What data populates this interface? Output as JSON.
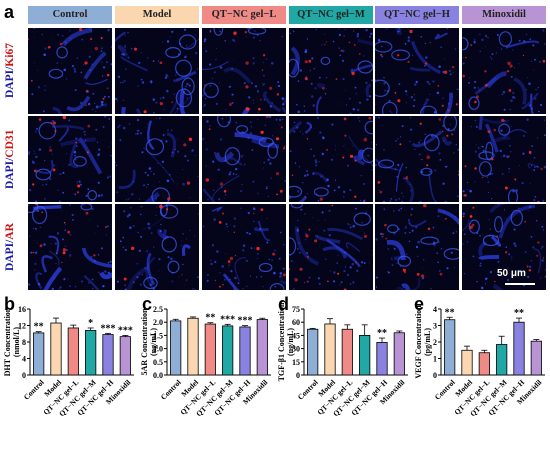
{
  "panel_letters": {
    "a": "a",
    "b": "b",
    "c": "c",
    "d": "d",
    "e": "e"
  },
  "groups": [
    "Control",
    "Model",
    "QT−NC gel−L",
    "QT−NC gel−M",
    "QT−NC gel−H",
    "Minoxidil"
  ],
  "group_colors": [
    "#8faed6",
    "#fbd7b1",
    "#f08a86",
    "#22a8a4",
    "#8a82e0",
    "#b994d4"
  ],
  "rows": [
    {
      "dapi": "DAPI/",
      "marker": "Ki67"
    },
    {
      "dapi": "DAPI/",
      "marker": "CD31"
    },
    {
      "dapi": "DAPI/",
      "marker": "AR"
    }
  ],
  "scale_bar": "50 μm",
  "chart_data": [
    {
      "type": "bar",
      "ylabel_line1": "DHT Concentration",
      "ylabel_line2": "(nmol/L)",
      "ylim": [
        0,
        16
      ],
      "yticks": [
        0,
        4,
        8,
        12,
        16
      ],
      "categories": [
        "Control",
        "Model",
        "QT−NC gel−L",
        "QT−NC gel−M",
        "QT−NC gel−H",
        "Minoxidil"
      ],
      "values": [
        10.2,
        12.6,
        11.4,
        10.8,
        9.8,
        9.3
      ],
      "errors": [
        0.3,
        1.2,
        0.7,
        0.6,
        0.3,
        0.3
      ],
      "significance": [
        "**",
        "",
        "",
        "*",
        "***",
        "***"
      ]
    },
    {
      "type": "bar",
      "ylabel_line1": "5AR Concentration",
      "ylabel_line2": "(ng/mL)",
      "ylim": [
        0,
        2.5
      ],
      "yticks": [
        0.0,
        0.5,
        1.0,
        1.5,
        2.0,
        2.5
      ],
      "categories": [
        "Control",
        "Model",
        "QT−NC gel−L",
        "QT−NC gel−M",
        "QT−NC gel−H",
        "Minoxidil"
      ],
      "values": [
        2.05,
        2.15,
        1.93,
        1.86,
        1.82,
        2.1
      ],
      "errors": [
        0.06,
        0.05,
        0.05,
        0.06,
        0.05,
        0.05
      ],
      "significance": [
        "",
        "",
        "**",
        "***",
        "***",
        ""
      ]
    },
    {
      "type": "bar",
      "ylabel_line1": "TGF-β1 Concentration",
      "ylabel_line2": "(ng/mL)",
      "ylim": [
        0,
        75
      ],
      "yticks": [
        0,
        15,
        30,
        45,
        60,
        75
      ],
      "categories": [
        "Control",
        "Model",
        "QT−NC gel−L",
        "QT−NC gel−M",
        "QT−NC gel−H",
        "Minoxidil"
      ],
      "values": [
        52,
        58,
        52,
        45,
        37,
        48
      ],
      "errors": [
        1,
        6,
        5,
        12,
        5,
        2
      ],
      "significance": [
        "",
        "",
        "",
        "",
        "**",
        ""
      ]
    },
    {
      "type": "bar",
      "ylabel_line1": "VEGF Concentration",
      "ylabel_line2": "(pg/mL)",
      "ylim": [
        0,
        4
      ],
      "yticks": [
        0,
        1,
        2,
        3,
        4
      ],
      "categories": [
        "Control",
        "Model",
        "QT−NC gel−L",
        "QT−NC gel−M",
        "QT−NC gel−H",
        "Minoxidil"
      ],
      "values": [
        3.35,
        1.5,
        1.35,
        1.85,
        3.2,
        2.05
      ],
      "errors": [
        0.15,
        0.25,
        0.15,
        0.5,
        0.25,
        0.1
      ],
      "significance": [
        "**",
        "",
        "",
        "",
        "**",
        ""
      ]
    }
  ]
}
